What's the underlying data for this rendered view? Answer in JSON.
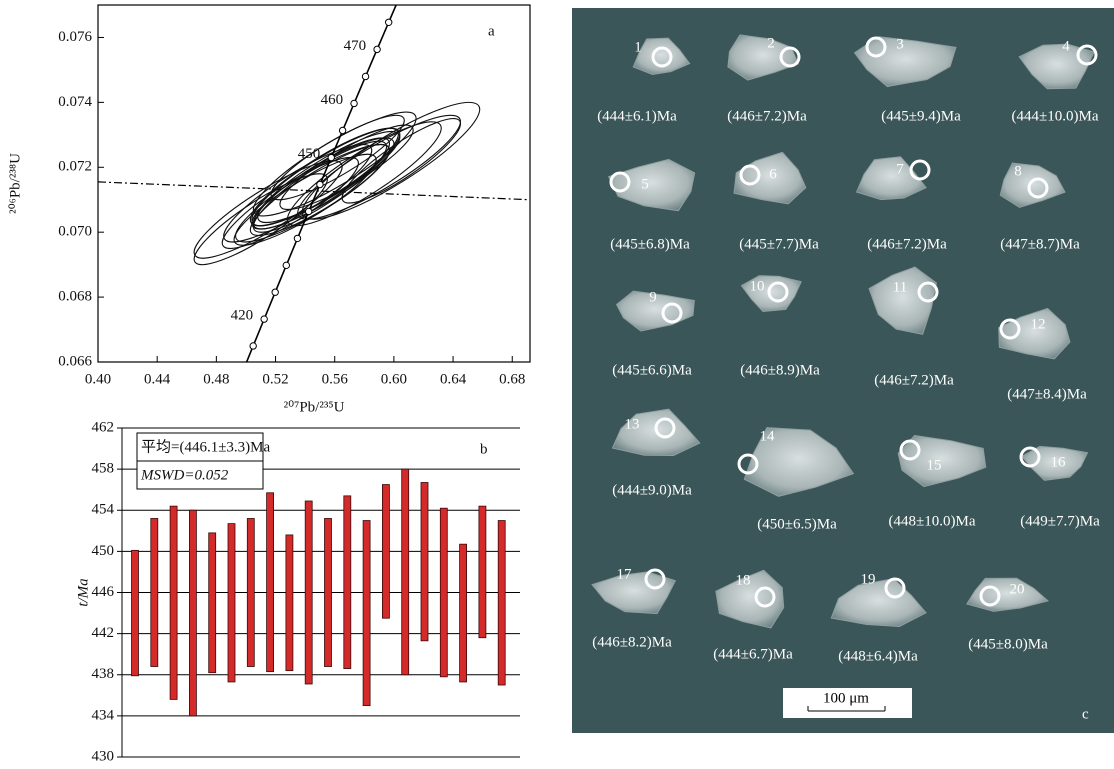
{
  "chart_data": [
    {
      "type": "concordia",
      "panel_label": "a",
      "x_label": "²⁰⁷Pb/²³⁵U",
      "y_label": "²⁰⁶Pb/²³⁸U",
      "xlim": [
        0.4,
        0.692
      ],
      "ylim": [
        0.066,
        0.077
      ],
      "xticks": [
        {
          "value": 0.4,
          "label": "0.40"
        },
        0.44,
        0.48,
        0.52,
        0.56,
        {
          "value": 0.6,
          "label": "0.60"
        },
        0.64,
        0.68
      ],
      "yticks": [
        0.066,
        0.068,
        {
          "value": 0.07,
          "label": "0.070"
        },
        0.072,
        0.074,
        0.076
      ],
      "concordia": {
        "ages": [
          415,
          420,
          425,
          430,
          435,
          440,
          445,
          450,
          455,
          460,
          465,
          470,
          475
        ],
        "x": [
          0.50488,
          0.51231,
          0.51977,
          0.52728,
          0.53481,
          0.54239,
          0.55001,
          0.55766,
          0.56535,
          0.57308,
          0.58084,
          0.58865,
          0.59649
        ],
        "y": [
          0.066494,
          0.067322,
          0.06815,
          0.068979,
          0.069808,
          0.070638,
          0.071469,
          0.0723,
          0.073133,
          0.073966,
          0.074798,
          0.075633,
          0.076467
        ]
      },
      "labeled_ages": [
        420,
        450,
        460,
        470
      ],
      "reference_line": {
        "x": [
          0.4,
          0.692
        ],
        "y": [
          0.07155,
          0.071
        ]
      },
      "ellipses": {
        "x": [
          0.55,
          0.553,
          0.59,
          0.598,
          0.552,
          0.545,
          0.556,
          0.515,
          0.551,
          0.58,
          0.554,
          0.54,
          0.51,
          0.562,
          0.605,
          0.56,
          0.535,
          0.55,
          0.568,
          0.53
        ],
        "y": [
          0.0714,
          0.0717,
          0.072,
          0.0722,
          0.0715,
          0.0712,
          0.0717,
          0.0707,
          0.0715,
          0.0718,
          0.0717,
          0.071,
          0.0704,
          0.0723,
          0.0722,
          0.0721,
          0.0712,
          0.0713,
          0.072,
          0.0709
        ],
        "x_err": [
          0.045,
          0.05,
          0.055,
          0.06,
          0.048,
          0.052,
          0.048,
          0.05,
          0.046,
          0.052,
          0.05,
          0.048,
          0.045,
          0.045,
          0.04,
          0.055,
          0.05,
          0.047,
          0.045,
          0.046
        ],
        "y_err": [
          0.0014,
          0.0015,
          0.0016,
          0.0018,
          0.0014,
          0.0015,
          0.0014,
          0.0015,
          0.0014,
          0.0016,
          0.0015,
          0.0014,
          0.0014,
          0.0013,
          0.0013,
          0.0016,
          0.0015,
          0.0014,
          0.0013,
          0.0014
        ],
        "rho": [
          0.88,
          0.88,
          0.88,
          0.88,
          0.88,
          0.88,
          0.88,
          0.88,
          0.88,
          0.88,
          0.88,
          0.88,
          0.88,
          0.88,
          0.88,
          0.88,
          0.88,
          0.88,
          0.88,
          0.88
        ]
      }
    },
    {
      "type": "range_bar",
      "panel_label": "b",
      "y_label": "t/Ma",
      "values": [
        444,
        446,
        445,
        444,
        445,
        445,
        446,
        447,
        445,
        446,
        446,
        447,
        444,
        450,
        448,
        449,
        446,
        444,
        448,
        445
      ],
      "errors": [
        6.1,
        7.2,
        9.4,
        10.0,
        6.8,
        7.7,
        7.2,
        8.7,
        6.6,
        8.9,
        7.2,
        8.4,
        9.0,
        6.5,
        10.0,
        7.7,
        8.2,
        6.7,
        6.4,
        8.0
      ],
      "color": "#d42a2a",
      "ylim": [
        430,
        462
      ],
      "yticks": [
        430,
        434,
        438,
        442,
        446,
        450,
        454,
        458,
        462
      ],
      "grid": true,
      "mean_text": "平均=(446.1±3.3)Ma",
      "mswd_text": "MSWD=0.052"
    }
  ],
  "cl_image": {
    "panel_label": "c",
    "scale_bar": "100 μm",
    "spot_numbers": [
      1,
      2,
      3,
      4,
      5,
      6,
      7,
      8,
      9,
      10,
      11,
      12,
      13,
      14,
      15,
      16,
      17,
      18,
      19,
      20
    ],
    "spot_ages": [
      "(444±6.1)Ma",
      "(446±7.2)Ma",
      "(445±9.4)Ma",
      "(444±10.0)Ma",
      "(445±6.8)Ma",
      "(445±7.7)Ma",
      "(446±7.2)Ma",
      "(447±8.7)Ma",
      "(445±6.6)Ma",
      "(446±8.9)Ma",
      "(446±7.2)Ma",
      "(447±8.4)Ma",
      "(444±9.0)Ma",
      "(450±6.5)Ma",
      "(448±10.0)Ma",
      "(449±7.7)Ma",
      "(446±8.2)Ma",
      "(444±6.7)Ma",
      "(448±6.4)Ma",
      "(445±8.0)Ma"
    ]
  }
}
